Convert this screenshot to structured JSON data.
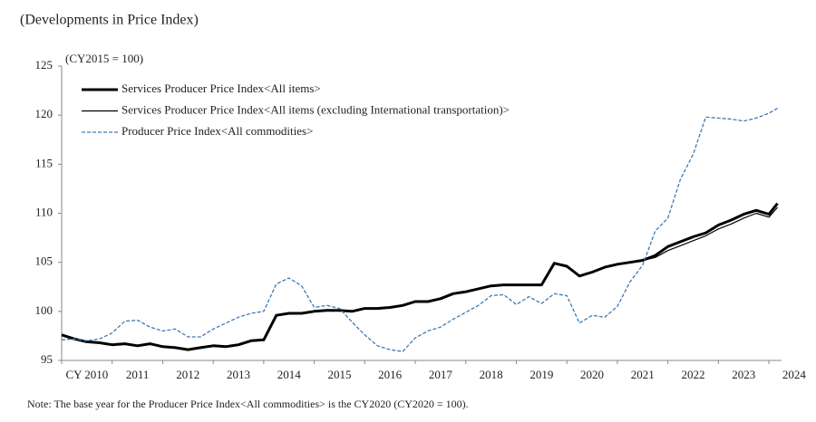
{
  "chart_data": {
    "type": "line",
    "title": "(Developments in Price Index)",
    "subtitle": "(CY2015 = 100)",
    "note": "Note: The base year for the Producer Price Index<All commodities> is the CY2020 (CY2020 = 100).",
    "x": [
      2010,
      2010.25,
      2010.5,
      2010.75,
      2011,
      2011.25,
      2011.5,
      2011.75,
      2012,
      2012.25,
      2012.5,
      2012.75,
      2013,
      2013.25,
      2013.5,
      2013.75,
      2014,
      2014.25,
      2014.5,
      2014.75,
      2015,
      2015.25,
      2015.5,
      2015.75,
      2016,
      2016.25,
      2016.5,
      2016.75,
      2017,
      2017.25,
      2017.5,
      2017.75,
      2018,
      2018.25,
      2018.5,
      2018.75,
      2019,
      2019.25,
      2019.5,
      2019.75,
      2020,
      2020.25,
      2020.5,
      2020.75,
      2021,
      2021.25,
      2021.5,
      2021.75,
      2022,
      2022.25,
      2022.5,
      2022.75,
      2023,
      2023.25,
      2023.5,
      2023.75,
      2024,
      2024.17
    ],
    "series": [
      {
        "name": "Services Producer Price Index<All items>",
        "color": "#000000",
        "linewidth": 3,
        "linestyle": "solid",
        "values": [
          97.6,
          97.2,
          96.9,
          96.8,
          96.6,
          96.7,
          96.5,
          96.7,
          96.4,
          96.3,
          96.1,
          96.3,
          96.5,
          96.4,
          96.6,
          97.0,
          97.1,
          99.6,
          99.8,
          99.8,
          100.0,
          100.1,
          100.1,
          100.0,
          100.3,
          100.3,
          100.4,
          100.6,
          101.0,
          101.0,
          101.3,
          101.8,
          102.0,
          102.3,
          102.6,
          102.7,
          102.7,
          102.7,
          102.7,
          104.9,
          104.6,
          103.6,
          104.0,
          104.5,
          104.8,
          105.0,
          105.2,
          105.7,
          106.6,
          107.1,
          107.6,
          108.0,
          108.8,
          109.3,
          109.9,
          110.3,
          109.9,
          111.0
        ]
      },
      {
        "name": "Services Producer Price Index<All items (excluding International transportation)>",
        "color": "#000000",
        "linewidth": 1.2,
        "linestyle": "solid",
        "values": [
          97.6,
          97.2,
          96.9,
          96.8,
          96.6,
          96.7,
          96.5,
          96.7,
          96.4,
          96.3,
          96.1,
          96.3,
          96.5,
          96.4,
          96.6,
          97.0,
          97.1,
          99.6,
          99.8,
          99.8,
          100.0,
          100.1,
          100.1,
          100.0,
          100.3,
          100.3,
          100.4,
          100.6,
          101.0,
          101.0,
          101.3,
          101.8,
          102.0,
          102.3,
          102.6,
          102.7,
          102.7,
          102.7,
          102.7,
          104.9,
          104.6,
          103.6,
          104.0,
          104.5,
          104.8,
          105.0,
          105.2,
          105.5,
          106.2,
          106.7,
          107.2,
          107.7,
          108.4,
          108.9,
          109.5,
          110.0,
          109.6,
          110.6
        ]
      },
      {
        "name": "Producer Price Index<All commodities>",
        "color": "#3d7ab8",
        "linewidth": 1.3,
        "linestyle": "dashed",
        "values": [
          97.1,
          97.2,
          97.0,
          97.2,
          97.8,
          99.0,
          99.1,
          98.4,
          98.0,
          98.2,
          97.4,
          97.4,
          98.2,
          98.8,
          99.4,
          99.8,
          100.0,
          102.8,
          103.4,
          102.6,
          100.4,
          100.6,
          100.3,
          98.9,
          97.6,
          96.5,
          96.1,
          95.9,
          97.3,
          98.0,
          98.4,
          99.2,
          99.9,
          100.6,
          101.6,
          101.7,
          100.7,
          101.5,
          100.8,
          101.8,
          101.6,
          98.8,
          99.6,
          99.4,
          100.5,
          103.0,
          104.7,
          108.2,
          109.5,
          113.5,
          116.0,
          119.8,
          119.7,
          119.6,
          119.4,
          119.7,
          120.2,
          120.7
        ]
      }
    ],
    "xlim": [
      2010,
      2024.25
    ],
    "xticks": [
      {
        "value": 2010,
        "label": "CY 2010"
      },
      2011,
      2012,
      2013,
      2014,
      2015,
      2016,
      2017,
      2018,
      2019,
      2020,
      2021,
      2022,
      2023,
      2024
    ],
    "ylim": [
      95,
      125
    ],
    "yticks": [
      95,
      100,
      105,
      110,
      115,
      120,
      125
    ],
    "grid": false,
    "legend": "upper left"
  }
}
